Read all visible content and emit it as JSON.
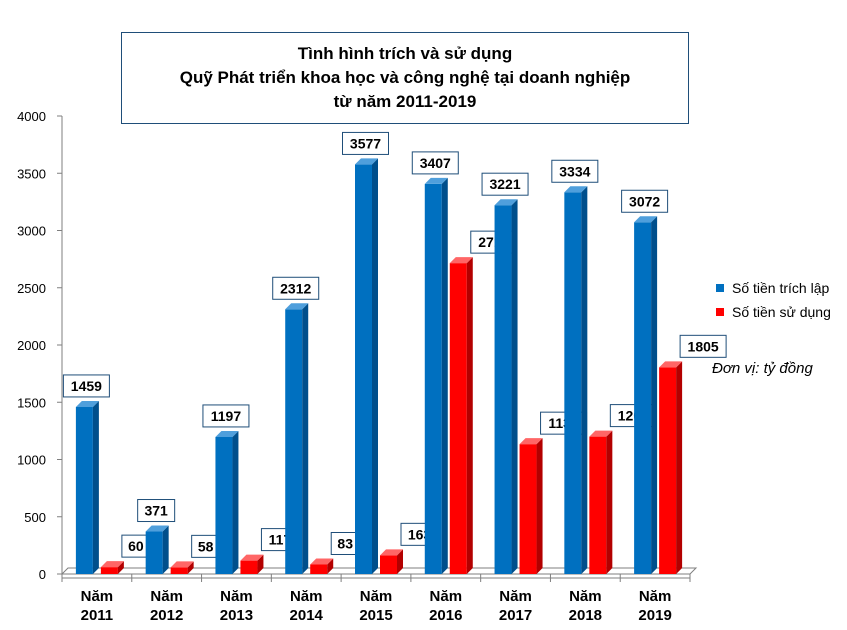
{
  "title": {
    "line1": "Tình hình trích và sử dụng",
    "line2": "Quỹ Phát triển khoa học và công nghệ tại doanh nghiệp",
    "line3": "từ năm 2011-2019"
  },
  "unit_note": "Đơn vị: tỷ đồng",
  "colors": {
    "series1": "#0070c0",
    "series2": "#ff0000"
  },
  "chart_data": {
    "type": "bar",
    "categories": [
      [
        "Năm",
        "2011"
      ],
      [
        "Năm",
        "2012"
      ],
      [
        "Năm",
        "2013"
      ],
      [
        "Năm",
        "2014"
      ],
      [
        "Năm",
        "2015"
      ],
      [
        "Năm",
        "2016"
      ],
      [
        "Năm",
        "2017"
      ],
      [
        "Năm",
        "2018"
      ],
      [
        "Năm",
        "2019"
      ]
    ],
    "series": [
      {
        "name": "Số tiền trích lập",
        "values": [
          1459,
          371,
          1197,
          2312,
          3577,
          3407,
          3221,
          3334,
          3072
        ]
      },
      {
        "name": "Số tiền sử dụng",
        "values": [
          60,
          58,
          117,
          83,
          163,
          2715,
          1134,
          1200,
          1805
        ]
      }
    ],
    "ylim": [
      0,
      4000
    ],
    "yticks": [
      0,
      500,
      1000,
      1500,
      2000,
      2500,
      3000,
      3500,
      4000
    ],
    "legend_position": "right",
    "grid": false
  }
}
